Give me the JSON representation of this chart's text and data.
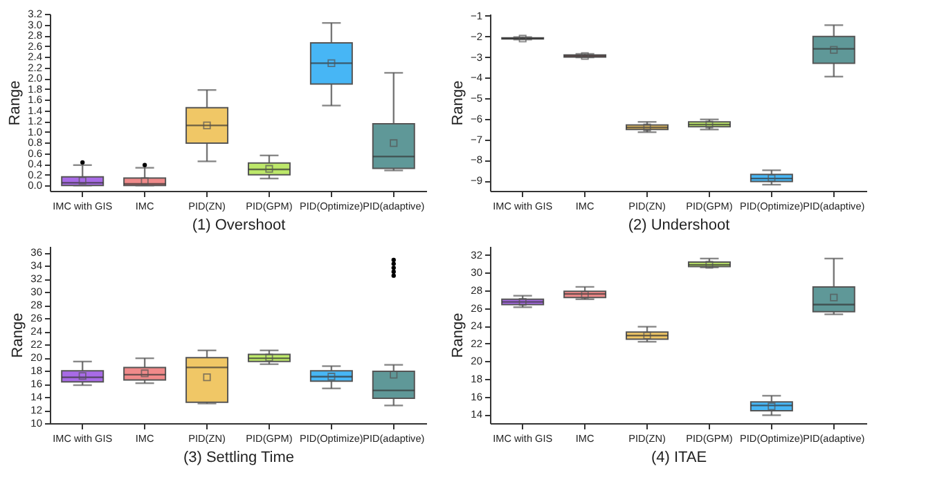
{
  "chart_data": [
    {
      "type": "box",
      "xlabel": "(1) Overshoot",
      "ylabel": "Range",
      "categories": [
        "IMC with GIS",
        "IMC",
        "PID(ZN)",
        "PID(GPM)",
        "PID(Optimize)",
        "PID(adaptive)"
      ],
      "colors": [
        "#a86be6",
        "#f08a8a",
        "#f0c766",
        "#bde86a",
        "#47b6f5",
        "#5f9898"
      ],
      "marker": "square",
      "ylim": [
        -0.1,
        3.2
      ],
      "yticks": [
        {
          "value": 0,
          "label": "0.0"
        },
        0.2,
        0.4,
        0.6,
        0.8,
        {
          "value": 1,
          "label": "1.0"
        },
        1.2,
        1.4,
        1.6,
        1.8,
        {
          "value": 2,
          "label": "2.0"
        },
        2.2,
        2.4,
        2.6,
        2.8,
        {
          "value": 3,
          "label": "3.0"
        },
        3.2
      ],
      "boxes": [
        {
          "low": 0,
          "q1": 0,
          "median": 0.05,
          "q3": 0.16,
          "high": 0.38,
          "mean": 0.09,
          "outliers": [
            0.43
          ]
        },
        {
          "low": 0,
          "q1": 0,
          "median": 0.03,
          "q3": 0.14,
          "high": 0.33,
          "mean": 0.08,
          "outliers": [
            0.38
          ]
        },
        {
          "low": 0.45,
          "q1": 0.79,
          "median": 1.12,
          "q3": 1.45,
          "high": 1.78,
          "mean": 1.12
        },
        {
          "low": 0.13,
          "q1": 0.2,
          "median": 0.3,
          "q3": 0.42,
          "high": 0.56,
          "mean": 0.31
        },
        {
          "low": 1.49,
          "q1": 1.89,
          "median": 2.28,
          "q3": 2.66,
          "high": 3.03,
          "mean": 2.28
        },
        {
          "low": 0.28,
          "q1": 0.32,
          "median": 0.54,
          "q3": 1.15,
          "high": 2.1,
          "mean": 0.79
        }
      ]
    },
    {
      "type": "box",
      "xlabel": "(2) Undershoot",
      "ylabel": "Range",
      "categories": [
        "IMC with GIS",
        "IMC",
        "PID(ZN)",
        "PID(GPM)",
        "PID(Optimize)",
        "PID(adaptive)"
      ],
      "colors": [
        "#a86be6",
        "#f08a8a",
        "#f0c766",
        "#bde86a",
        "#47b6f5",
        "#5f9898"
      ],
      "marker": "square",
      "ylim": [
        -9.5,
        -0.9
      ],
      "yticks": [
        -9,
        -8,
        -7,
        -6,
        -5,
        -4,
        -3,
        -2,
        -1
      ],
      "boxes": [
        {
          "low": -2.15,
          "q1": -2.12,
          "median": -2.1,
          "q3": -2.07,
          "high": -2.03,
          "mean": -2.1
        },
        {
          "low": -3.02,
          "q1": -3,
          "median": -2.95,
          "q3": -2.9,
          "high": -2.85,
          "mean": -2.95
        },
        {
          "low": -6.65,
          "q1": -6.52,
          "median": -6.42,
          "q3": -6.3,
          "high": -6.15,
          "mean": -6.42
        },
        {
          "low": -6.52,
          "q1": -6.38,
          "median": -6.28,
          "q3": -6.15,
          "high": -6.03,
          "mean": -6.28
        },
        {
          "low": -9.2,
          "q1": -9.05,
          "median": -8.9,
          "q3": -8.7,
          "high": -8.5,
          "mean": -8.88
        },
        {
          "low": -3.95,
          "q1": -3.3,
          "median": -2.6,
          "q3": -2,
          "high": -1.45,
          "mean": -2.65
        }
      ]
    },
    {
      "type": "box",
      "xlabel": "(3) Settling Time",
      "ylabel": "Range",
      "categories": [
        "IMC with GIS",
        "IMC",
        "PID(ZN)",
        "PID(GPM)",
        "PID(Optimize)",
        "PID(adaptive)"
      ],
      "colors": [
        "#a86be6",
        "#f08a8a",
        "#f0c766",
        "#bde86a",
        "#47b6f5",
        "#5f9898"
      ],
      "marker": "square",
      "ylim": [
        10,
        37
      ],
      "yticks": [
        10,
        12,
        14,
        16,
        18,
        20,
        22,
        24,
        26,
        28,
        30,
        32,
        34,
        36
      ],
      "boxes": [
        {
          "low": 15.8,
          "q1": 16.3,
          "median": 17,
          "q3": 18,
          "high": 19.4,
          "mean": 17.2
        },
        {
          "low": 16.1,
          "q1": 16.6,
          "median": 17.4,
          "q3": 18.5,
          "high": 19.9,
          "mean": 17.6
        },
        {
          "low": 13,
          "q1": 13.2,
          "median": 18.5,
          "q3": 20,
          "high": 21.1,
          "mean": 17
        },
        {
          "low": 19,
          "q1": 19.4,
          "median": 19.9,
          "q3": 20.5,
          "high": 21.1,
          "mean": 20
        },
        {
          "low": 15.3,
          "q1": 16.4,
          "median": 17.1,
          "q3": 18,
          "high": 18.7,
          "mean": 17.1
        },
        {
          "low": 12.7,
          "q1": 13.8,
          "median": 15,
          "q3": 17.9,
          "high": 18.9,
          "mean": 17.4,
          "outliers": [
            32.5,
            33.1,
            33.7,
            34.3,
            34.9
          ]
        }
      ]
    },
    {
      "type": "box",
      "xlabel": "(4) ITAE",
      "ylabel": "Range",
      "categories": [
        "IMC with GIS",
        "IMC",
        "PID(ZN)",
        "PID(GPM)",
        "PID(Optimize)",
        "PID(adaptive)"
      ],
      "colors": [
        "#a86be6",
        "#f08a8a",
        "#f0c766",
        "#bde86a",
        "#47b6f5",
        "#5f9898"
      ],
      "marker": "square",
      "ylim": [
        13,
        33
      ],
      "yticks": [
        14,
        16,
        18,
        20,
        22,
        24,
        26,
        28,
        30,
        32
      ],
      "boxes": [
        {
          "low": 26.1,
          "q1": 26.4,
          "median": 26.7,
          "q3": 27,
          "high": 27.4,
          "mean": 26.7
        },
        {
          "low": 27,
          "q1": 27.2,
          "median": 27.6,
          "q3": 27.9,
          "high": 28.4,
          "mean": 27.5
        },
        {
          "low": 22.2,
          "q1": 22.5,
          "median": 22.9,
          "q3": 23.3,
          "high": 23.9,
          "mean": 22.9
        },
        {
          "low": 30.6,
          "q1": 30.7,
          "median": 30.9,
          "q3": 31.2,
          "high": 31.6,
          "mean": 30.9
        },
        {
          "low": 13.9,
          "q1": 14.4,
          "median": 15,
          "q3": 15.4,
          "high": 16.1,
          "mean": 14.9
        },
        {
          "low": 25.3,
          "q1": 25.6,
          "median": 26.4,
          "q3": 28.4,
          "high": 31.6,
          "mean": 27.2
        }
      ]
    }
  ]
}
